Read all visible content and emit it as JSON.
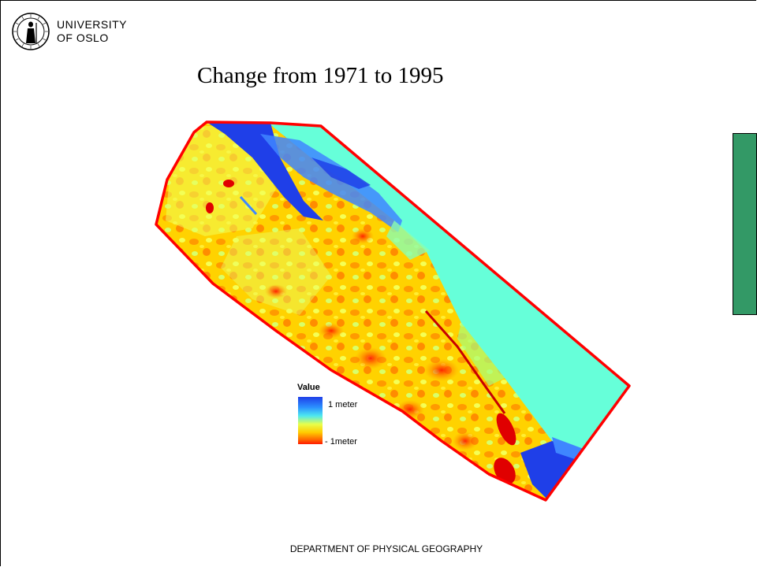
{
  "header": {
    "institution_line1": "UNIVERSITY",
    "institution_line2": "OF OSLO"
  },
  "title": "Change from 1971 to 1995",
  "legend": {
    "title": "Value",
    "high_label": "1 meter",
    "low_label": "- 1meter"
  },
  "footer": "DEPARTMENT OF PHYSICAL GEOGRAPHY",
  "colors": {
    "outline": "#ff0000",
    "water": "#66ffd9",
    "positive_change": "#1f3fe8",
    "negative_change": "#ff1a00",
    "side_bar": "#339966"
  }
}
